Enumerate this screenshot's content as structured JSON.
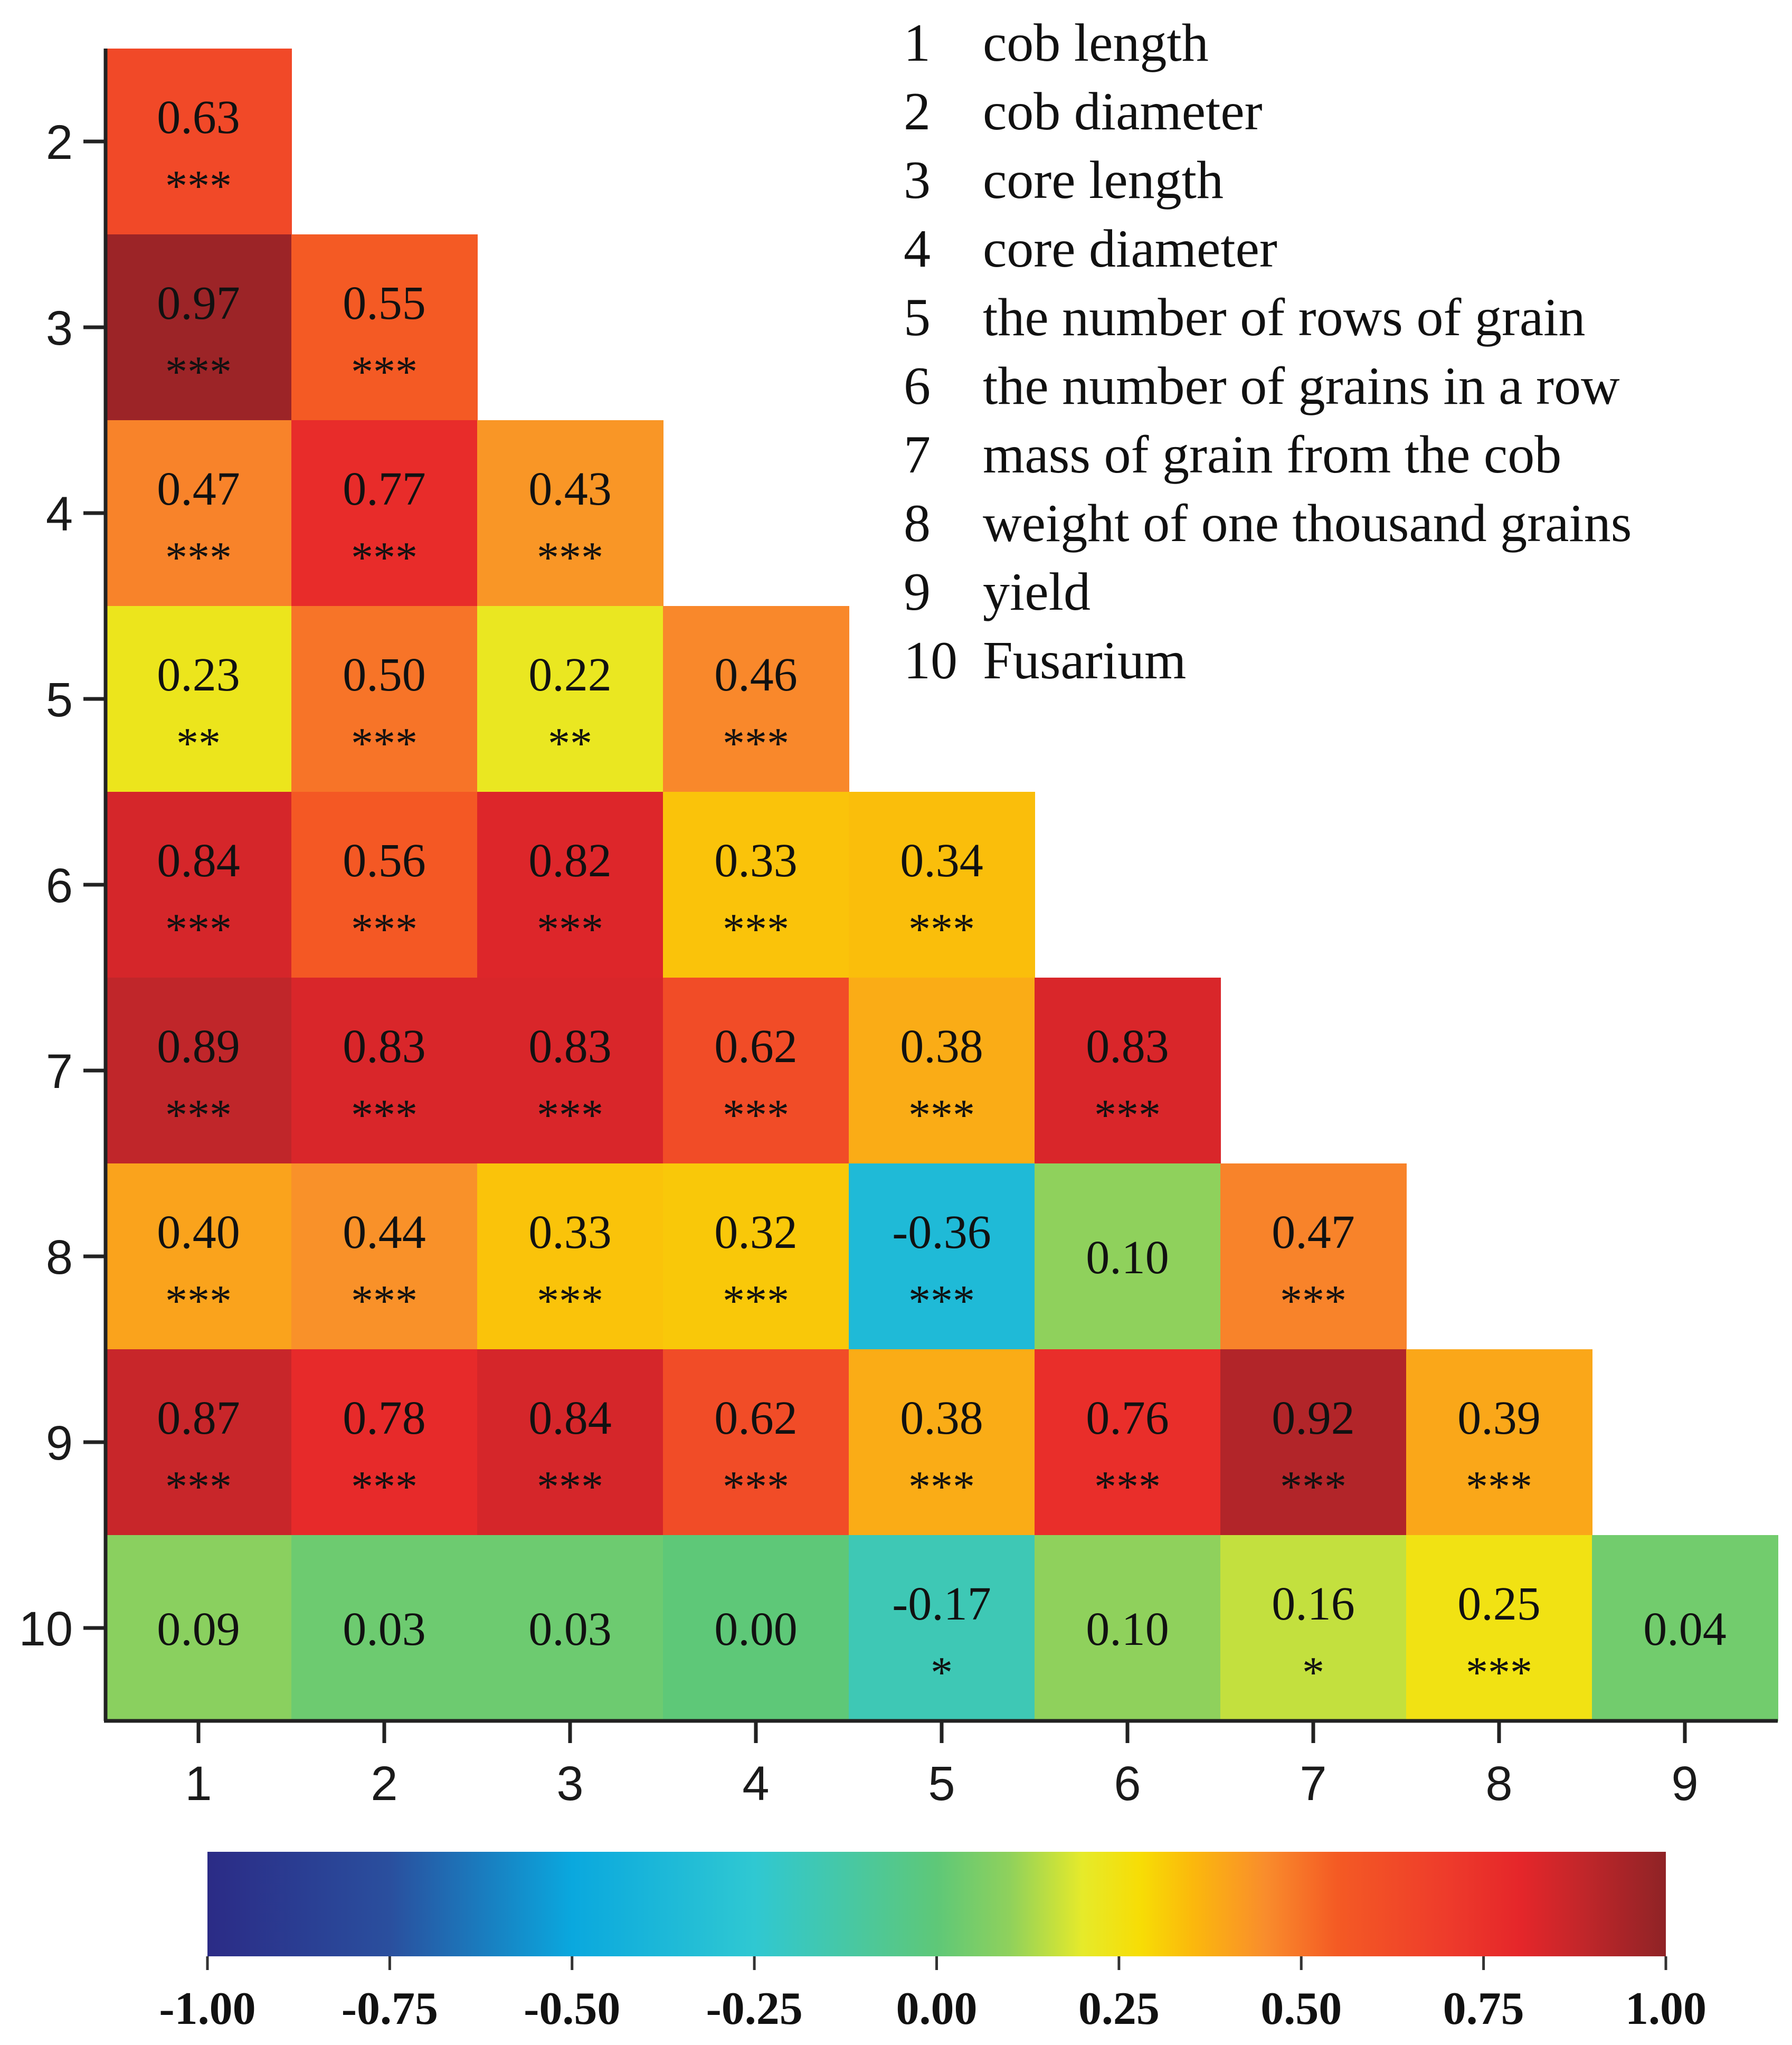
{
  "chart_data": {
    "type": "heatmap",
    "title": "",
    "xlabel": "",
    "ylabel": "",
    "x_categories": [
      "1",
      "2",
      "3",
      "4",
      "5",
      "6",
      "7",
      "8",
      "9"
    ],
    "y_categories": [
      "2",
      "3",
      "4",
      "5",
      "6",
      "7",
      "8",
      "9",
      "10"
    ],
    "cells": [
      {
        "row": "2",
        "col": "1",
        "value": "0.63",
        "sig": "***"
      },
      {
        "row": "3",
        "col": "1",
        "value": "0.97",
        "sig": "***"
      },
      {
        "row": "3",
        "col": "2",
        "value": "0.55",
        "sig": "***"
      },
      {
        "row": "4",
        "col": "1",
        "value": "0.47",
        "sig": "***"
      },
      {
        "row": "4",
        "col": "2",
        "value": "0.77",
        "sig": "***"
      },
      {
        "row": "4",
        "col": "3",
        "value": "0.43",
        "sig": "***"
      },
      {
        "row": "5",
        "col": "1",
        "value": "0.23",
        "sig": "**"
      },
      {
        "row": "5",
        "col": "2",
        "value": "0.50",
        "sig": "***"
      },
      {
        "row": "5",
        "col": "3",
        "value": "0.22",
        "sig": "**"
      },
      {
        "row": "5",
        "col": "4",
        "value": "0.46",
        "sig": "***"
      },
      {
        "row": "6",
        "col": "1",
        "value": "0.84",
        "sig": "***"
      },
      {
        "row": "6",
        "col": "2",
        "value": "0.56",
        "sig": "***"
      },
      {
        "row": "6",
        "col": "3",
        "value": "0.82",
        "sig": "***"
      },
      {
        "row": "6",
        "col": "4",
        "value": "0.33",
        "sig": "***"
      },
      {
        "row": "6",
        "col": "5",
        "value": "0.34",
        "sig": "***"
      },
      {
        "row": "7",
        "col": "1",
        "value": "0.89",
        "sig": "***"
      },
      {
        "row": "7",
        "col": "2",
        "value": "0.83",
        "sig": "***"
      },
      {
        "row": "7",
        "col": "3",
        "value": "0.83",
        "sig": "***"
      },
      {
        "row": "7",
        "col": "4",
        "value": "0.62",
        "sig": "***"
      },
      {
        "row": "7",
        "col": "5",
        "value": "0.38",
        "sig": "***"
      },
      {
        "row": "7",
        "col": "6",
        "value": "0.83",
        "sig": "***"
      },
      {
        "row": "8",
        "col": "1",
        "value": "0.40",
        "sig": "***"
      },
      {
        "row": "8",
        "col": "2",
        "value": "0.44",
        "sig": "***"
      },
      {
        "row": "8",
        "col": "3",
        "value": "0.33",
        "sig": "***"
      },
      {
        "row": "8",
        "col": "4",
        "value": "0.32",
        "sig": "***"
      },
      {
        "row": "8",
        "col": "5",
        "value": "-0.36",
        "sig": "***"
      },
      {
        "row": "8",
        "col": "6",
        "value": "0.10",
        "sig": ""
      },
      {
        "row": "8",
        "col": "7",
        "value": "0.47",
        "sig": "***"
      },
      {
        "row": "9",
        "col": "1",
        "value": "0.87",
        "sig": "***"
      },
      {
        "row": "9",
        "col": "2",
        "value": "0.78",
        "sig": "***"
      },
      {
        "row": "9",
        "col": "3",
        "value": "0.84",
        "sig": "***"
      },
      {
        "row": "9",
        "col": "4",
        "value": "0.62",
        "sig": "***"
      },
      {
        "row": "9",
        "col": "5",
        "value": "0.38",
        "sig": "***"
      },
      {
        "row": "9",
        "col": "6",
        "value": "0.76",
        "sig": "***"
      },
      {
        "row": "9",
        "col": "7",
        "value": "0.92",
        "sig": "***"
      },
      {
        "row": "9",
        "col": "8",
        "value": "0.39",
        "sig": "***"
      },
      {
        "row": "10",
        "col": "1",
        "value": "0.09",
        "sig": ""
      },
      {
        "row": "10",
        "col": "2",
        "value": "0.03",
        "sig": ""
      },
      {
        "row": "10",
        "col": "3",
        "value": "0.03",
        "sig": ""
      },
      {
        "row": "10",
        "col": "4",
        "value": "0.00",
        "sig": ""
      },
      {
        "row": "10",
        "col": "5",
        "value": "-0.17",
        "sig": "*"
      },
      {
        "row": "10",
        "col": "6",
        "value": "0.10",
        "sig": ""
      },
      {
        "row": "10",
        "col": "7",
        "value": "0.16",
        "sig": "*"
      },
      {
        "row": "10",
        "col": "8",
        "value": "0.25",
        "sig": "***"
      },
      {
        "row": "10",
        "col": "9",
        "value": "0.04",
        "sig": ""
      }
    ],
    "legend": [
      {
        "number": "1",
        "label": "cob length"
      },
      {
        "number": "2",
        "label": "cob diameter"
      },
      {
        "number": "3",
        "label": "core length"
      },
      {
        "number": "4",
        "label": "core diameter"
      },
      {
        "number": "5",
        "label": "the number of rows of grain"
      },
      {
        "number": "6",
        "label": "the number of grains in a row"
      },
      {
        "number": "7",
        "label": "mass of grain from the cob"
      },
      {
        "number": "8",
        "label": "weight of one thousand grains"
      },
      {
        "number": "9",
        "label": "yield"
      },
      {
        "number": "10",
        "label": "Fusarium"
      }
    ],
    "legend_placement": "top-right",
    "colorbar": {
      "range": [
        -1.0,
        1.0
      ],
      "ticks": [
        "-1.00",
        "-0.75",
        "-0.50",
        "-0.25",
        "0.00",
        "0.25",
        "0.50",
        "0.75",
        "1.00"
      ],
      "orientation": "horizontal",
      "placement": "bottom",
      "stops": [
        {
          "value": -1.0,
          "color": "#2b2b86"
        },
        {
          "value": -0.75,
          "color": "#2a4f9e"
        },
        {
          "value": -0.5,
          "color": "#0aa8de"
        },
        {
          "value": -0.25,
          "color": "#2fc8d2"
        },
        {
          "value": 0.0,
          "color": "#5ec878"
        },
        {
          "value": 0.1,
          "color": "#8fd15c"
        },
        {
          "value": 0.2,
          "color": "#e6ea2a"
        },
        {
          "value": 0.28,
          "color": "#f7dd05"
        },
        {
          "value": 0.35,
          "color": "#fbb90c"
        },
        {
          "value": 0.45,
          "color": "#f98d2c"
        },
        {
          "value": 0.55,
          "color": "#f45a24"
        },
        {
          "value": 0.7,
          "color": "#ee3b2b"
        },
        {
          "value": 0.8,
          "color": "#e5262a"
        },
        {
          "value": 0.88,
          "color": "#c4262a"
        },
        {
          "value": 1.0,
          "color": "#8f2326"
        }
      ]
    },
    "grid": false
  }
}
